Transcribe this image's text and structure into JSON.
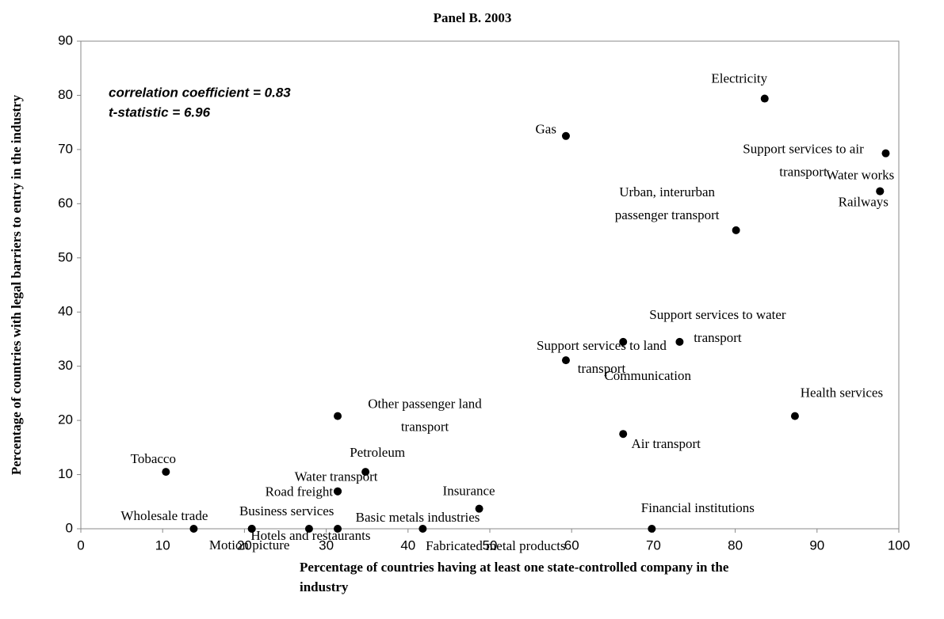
{
  "chart_data": {
    "type": "scatter",
    "title": "Panel B. 2003",
    "xlabel": "Percentage of countries having at least one state-controlled company in the industry",
    "ylabel": "Percentage of countries with legal barriers to entry in the industry",
    "annotations": [
      "correlation coefficient = 0.83",
      "t-statistic = 6.96"
    ],
    "color": "#000000",
    "labels": [
      "Electricity",
      "Gas",
      "Support services to air transport",
      "Water works",
      "Railways",
      "Urban, interurban passenger transport",
      "Support services to water transport",
      "Communication",
      "Support services to land transport",
      "Health services",
      "Air transport",
      "Other passenger land transport",
      "Tobacco",
      "Petroleum",
      "Water transport",
      "Road freight",
      "Insurance",
      "Wholesale trade",
      "Business services",
      "Motion picture",
      "Hotels and restaurants",
      "Basic metals industries",
      "Fabricated metal products",
      "Financial institutions"
    ],
    "x": [
      83.6,
      59.3,
      98.4,
      97.7,
      97.7,
      80.1,
      73.2,
      66.3,
      59.3,
      87.3,
      66.3,
      31.4,
      10.4,
      34.8,
      31.4,
      31.4,
      48.7,
      13.8,
      20.9,
      20.9,
      27.9,
      31.4,
      41.8,
      69.8
    ],
    "values": [
      79.4,
      72.5,
      69.3,
      62.3,
      62.3,
      55.1,
      34.5,
      34.5,
      31.1,
      20.8,
      17.5,
      20.8,
      10.5,
      10.5,
      6.9,
      6.9,
      3.7,
      0,
      0,
      0,
      0,
      0,
      0,
      0
    ],
    "xlim": [
      0,
      100
    ],
    "xticks": [
      0,
      10,
      20,
      30,
      40,
      50,
      60,
      70,
      80,
      90,
      100
    ],
    "ylim": [
      0,
      90
    ],
    "yticks": [
      0,
      10,
      20,
      30,
      40,
      50,
      60,
      70,
      80,
      90
    ]
  }
}
